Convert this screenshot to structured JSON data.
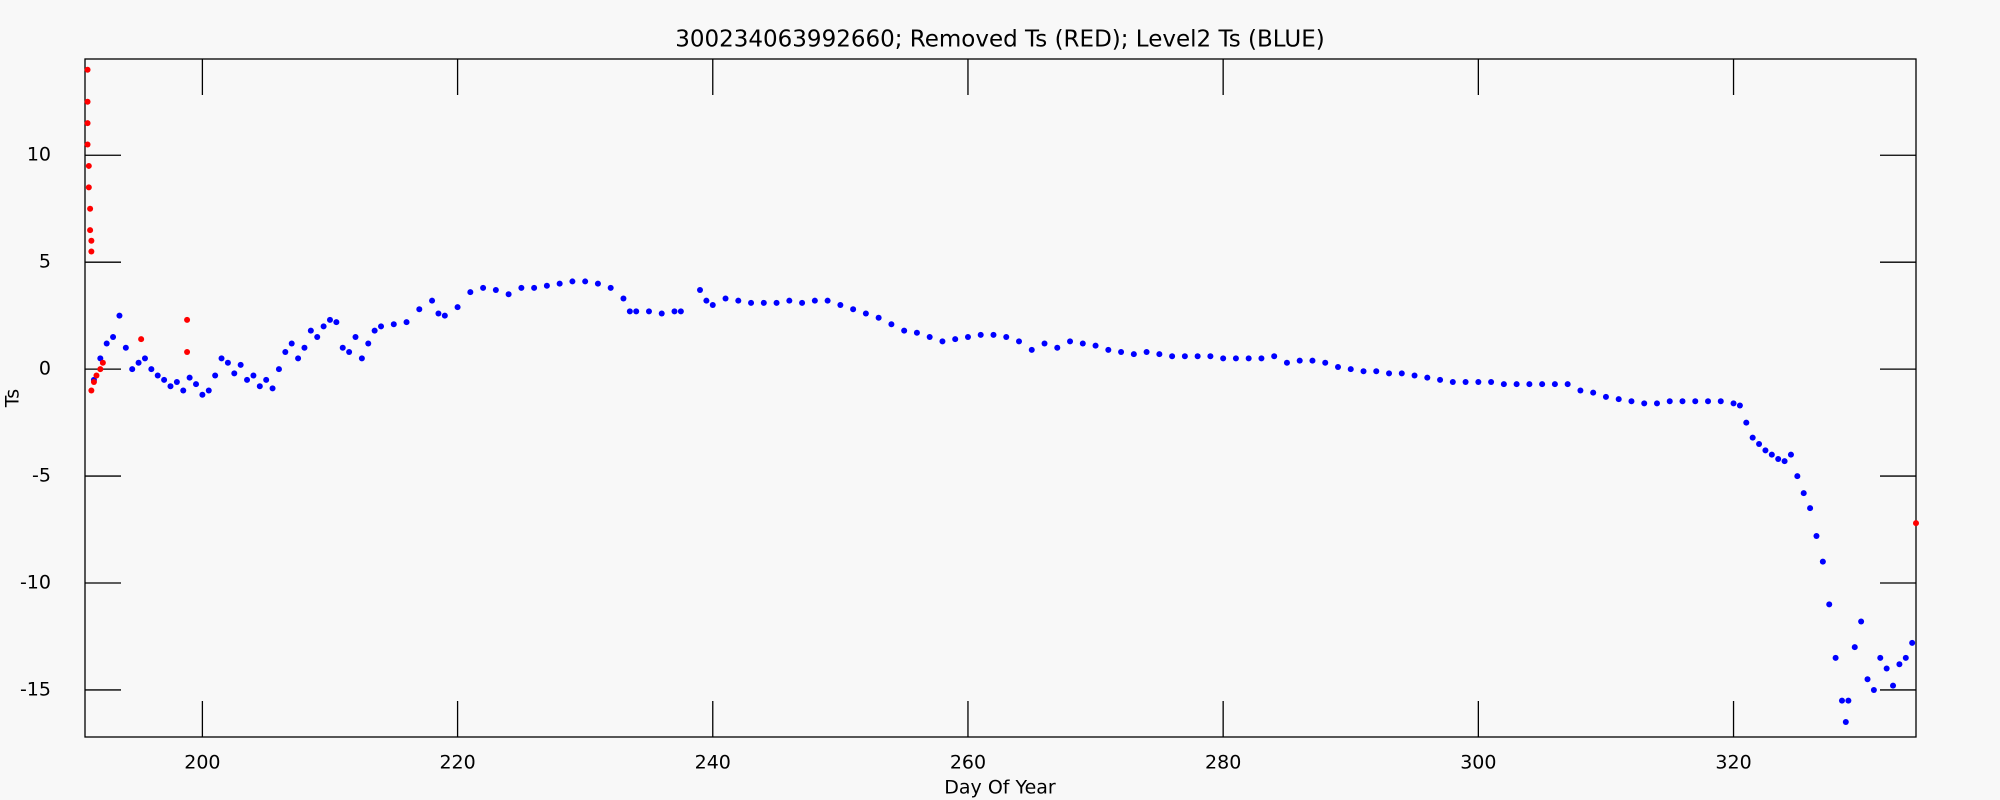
{
  "chart_data": {
    "type": "scatter",
    "title": "300234063992660; Removed Ts (RED); Level2 Ts (BLUE)",
    "x_label": "Day Of Year",
    "y_label": "Ts",
    "xlim": [
      190.8,
      334.3
    ],
    "ylim": [
      -17.2,
      14.5
    ],
    "xticks": [
      200,
      220,
      240,
      260,
      280,
      300,
      320
    ],
    "yticks": [
      -15,
      -10,
      -5,
      0,
      5,
      10
    ],
    "series": [
      {
        "color": "#0000ff",
        "x": [
          191.5,
          192,
          192.5,
          193,
          193.5,
          194,
          194.5,
          195,
          195.5,
          196,
          196.5,
          197,
          197.5,
          198,
          198.5,
          199,
          199.5,
          200,
          200.5,
          201,
          201.5,
          202,
          202.5,
          203,
          203.5,
          204,
          204.5,
          205,
          205.5,
          206,
          206.5,
          207,
          207.5,
          208,
          208.5,
          209,
          209.5,
          210,
          210.5,
          211,
          211.5,
          212,
          212.5,
          213,
          213.5,
          214,
          215,
          216,
          217,
          218,
          218.5,
          219,
          220,
          221,
          222,
          223,
          224,
          225,
          226,
          227,
          228,
          229,
          230,
          231,
          232,
          233,
          233.5,
          234,
          235,
          236,
          237,
          237.5,
          239,
          239.5,
          240,
          241,
          242,
          243,
          244,
          245,
          246,
          247,
          248,
          249,
          250,
          251,
          252,
          253,
          254,
          255,
          256,
          257,
          258,
          259,
          260,
          261,
          262,
          263,
          264,
          265,
          266,
          267,
          268,
          269,
          270,
          271,
          272,
          273,
          274,
          275,
          276,
          277,
          278,
          279,
          280,
          281,
          282,
          283,
          284,
          285,
          286,
          287,
          288,
          289,
          290,
          291,
          292,
          293,
          294,
          295,
          296,
          297,
          298,
          299,
          300,
          301,
          302,
          303,
          304,
          305,
          306,
          307,
          308,
          309,
          310,
          311,
          312,
          313,
          314,
          315,
          316,
          317,
          318,
          319,
          320,
          320.5,
          321,
          321.5,
          322,
          322.5,
          323,
          323.5,
          324,
          324.5,
          325,
          325.5,
          326,
          326.5,
          327,
          327.5,
          328,
          328.5,
          328.8,
          329,
          329.5,
          330,
          330.5,
          331,
          331.5,
          332,
          332.5,
          333,
          333.5,
          334
        ],
        "values": [
          -0.5,
          0.5,
          1.2,
          1.5,
          2.5,
          1.0,
          0,
          0.3,
          0.5,
          0,
          -0.3,
          -0.5,
          -0.8,
          -0.6,
          -1.0,
          -0.4,
          -0.7,
          -1.2,
          -1.0,
          -0.3,
          0.5,
          0.3,
          -0.2,
          0.2,
          -0.5,
          -0.3,
          -0.8,
          -0.5,
          -0.9,
          0,
          0.8,
          1.2,
          0.5,
          1.0,
          1.8,
          1.5,
          2.0,
          2.3,
          2.2,
          1.0,
          0.8,
          1.5,
          0.5,
          1.2,
          1.8,
          2.0,
          2.1,
          2.2,
          2.8,
          3.2,
          2.6,
          2.5,
          2.9,
          3.6,
          3.8,
          3.7,
          3.5,
          3.8,
          3.8,
          3.9,
          4.0,
          4.1,
          4.1,
          4.0,
          3.8,
          3.3,
          2.7,
          2.7,
          2.7,
          2.6,
          2.7,
          2.7,
          3.7,
          3.2,
          3.0,
          3.3,
          3.2,
          3.1,
          3.1,
          3.1,
          3.2,
          3.1,
          3.2,
          3.2,
          3.0,
          2.8,
          2.6,
          2.4,
          2.1,
          1.8,
          1.7,
          1.5,
          1.3,
          1.4,
          1.5,
          1.6,
          1.6,
          1.5,
          1.3,
          0.9,
          1.2,
          1.0,
          1.3,
          1.2,
          1.1,
          0.9,
          0.8,
          0.7,
          0.8,
          0.7,
          0.6,
          0.6,
          0.6,
          0.6,
          0.5,
          0.5,
          0.5,
          0.5,
          0.6,
          0.3,
          0.4,
          0.4,
          0.3,
          0.1,
          0.0,
          -0.1,
          -0.1,
          -0.2,
          -0.2,
          -0.3,
          -0.4,
          -0.5,
          -0.6,
          -0.6,
          -0.6,
          -0.6,
          -0.7,
          -0.7,
          -0.7,
          -0.7,
          -0.7,
          -0.7,
          -1.0,
          -1.1,
          -1.3,
          -1.4,
          -1.5,
          -1.6,
          -1.6,
          -1.5,
          -1.5,
          -1.5,
          -1.5,
          -1.5,
          -1.6,
          -1.7,
          -2.5,
          -3.2,
          -3.5,
          -3.8,
          -4.0,
          -4.2,
          -4.3,
          -4.0,
          -5.0,
          -5.8,
          -6.5,
          -7.8,
          -9.0,
          -11.0,
          -13.5,
          -15.5,
          -16.5,
          -15.5,
          -13.0,
          -11.8,
          -14.5,
          -15.0,
          -13.5,
          -14.0,
          -14.8,
          -13.8,
          -13.5,
          -12.8
        ]
      },
      {
        "color": "#ff0000",
        "x": [
          191,
          191,
          191,
          191,
          191.1,
          191.1,
          191.2,
          191.2,
          191.3,
          191.3,
          191.3,
          191.5,
          191.7,
          192,
          192.2,
          195.2,
          198.8,
          198.8,
          334.3
        ],
        "values": [
          14,
          12.5,
          11.5,
          10.5,
          9.5,
          8.5,
          7.5,
          6.5,
          6,
          5.5,
          -1,
          -0.6,
          -0.3,
          0,
          0.3,
          1.4,
          2.3,
          0.8,
          -7.2
        ]
      }
    ]
  }
}
